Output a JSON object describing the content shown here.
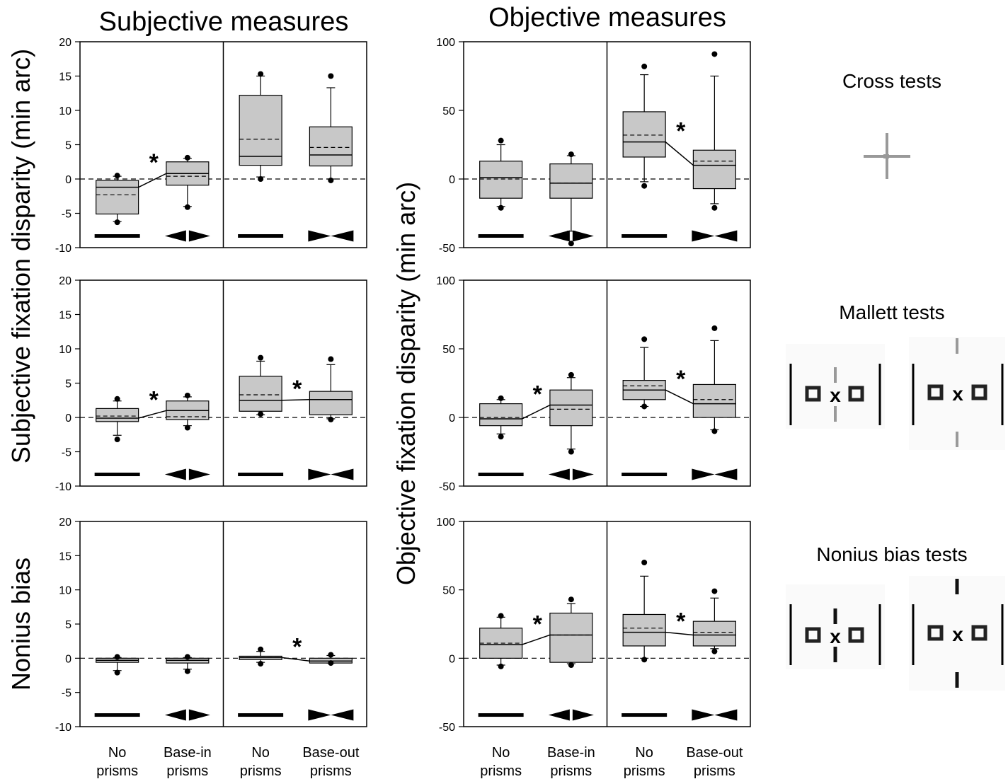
{
  "headers": {
    "subjective": "Subjective measures",
    "objective": "Objective measures"
  },
  "ylabels": {
    "subjective_main": "Subjective fixation disparity (min arc)",
    "nonius": "Nonius bias",
    "objective_main": "Objective fixation disparity (min arc)"
  },
  "categories": [
    [
      "No",
      "prisms"
    ],
    [
      "Base-in",
      "prisms"
    ],
    [
      "No",
      "prisms"
    ],
    [
      "Base-out",
      "prisms"
    ]
  ],
  "prism_symbols": [
    "bar",
    "base-in",
    "bar",
    "base-out"
  ],
  "test_titles": {
    "cross": "Cross tests",
    "mallett": "Mallett tests",
    "nonius": "Nonius bias tests"
  },
  "significance_marker": "*",
  "colors": {
    "box_fill": "#c8c8c8",
    "line": "#000000",
    "symbol_gray": "#999999"
  },
  "chart_data": [
    {
      "type": "box",
      "panel": "subjective-cross",
      "ylim": [
        -10,
        20
      ],
      "yticks": [
        -10,
        -5,
        0,
        5,
        10,
        15,
        20
      ],
      "boxes": [
        {
          "q1": -5.1,
          "median": -1.2,
          "q3": -0.2,
          "mean": -2.3,
          "whisker_low": -6.2,
          "whisker_high": 0.4,
          "outliers": [
            -6.3,
            0.5
          ]
        },
        {
          "q1": -0.9,
          "median": 0.8,
          "q3": 2.5,
          "mean": 0.4,
          "whisker_low": -4.0,
          "whisker_high": 3.0,
          "outliers": [
            -4.1,
            3.1
          ]
        },
        {
          "q1": 2.0,
          "median": 3.3,
          "q3": 12.2,
          "mean": 5.8,
          "whisker_low": 0.3,
          "whisker_high": 15.0,
          "outliers": [
            0.0,
            15.3
          ]
        },
        {
          "q1": 1.9,
          "median": 3.5,
          "q3": 7.6,
          "mean": 4.6,
          "whisker_low": 0.0,
          "whisker_high": 13.3,
          "outliers": [
            -0.2,
            15.0
          ]
        }
      ],
      "significant_pairs": [
        [
          0,
          1
        ]
      ]
    },
    {
      "type": "box",
      "panel": "subjective-mallett",
      "ylim": [
        -10,
        20
      ],
      "yticks": [
        -10,
        -5,
        0,
        5,
        10,
        15,
        20
      ],
      "boxes": [
        {
          "q1": -0.6,
          "median": -0.1,
          "q3": 1.3,
          "mean": 0.2,
          "whisker_low": -2.6,
          "whisker_high": 2.4,
          "outliers": [
            -3.2,
            2.7
          ]
        },
        {
          "q1": -0.3,
          "median": 1.0,
          "q3": 2.4,
          "mean": 0.1,
          "whisker_low": -1.2,
          "whisker_high": 3.0,
          "outliers": [
            -1.5,
            3.2
          ]
        },
        {
          "q1": 0.9,
          "median": 2.5,
          "q3": 6.0,
          "mean": 3.3,
          "whisker_low": 0.4,
          "whisker_high": 8.2,
          "outliers": [
            0.5,
            8.7
          ]
        },
        {
          "q1": 0.4,
          "median": 2.6,
          "q3": 3.8,
          "mean": 2.6,
          "whisker_low": -0.2,
          "whisker_high": 7.7,
          "outliers": [
            -0.3,
            8.5
          ]
        }
      ],
      "significant_pairs": [
        [
          0,
          1
        ],
        [
          2,
          3
        ]
      ]
    },
    {
      "type": "box",
      "panel": "subjective-nonius",
      "ylim": [
        -10,
        20
      ],
      "yticks": [
        -10,
        -5,
        0,
        5,
        10,
        15,
        20
      ],
      "boxes": [
        {
          "q1": -0.6,
          "median": -0.3,
          "q3": 0.0,
          "mean": -0.3,
          "whisker_low": -1.8,
          "whisker_high": 0.1,
          "outliers": [
            -2.1,
            0.2
          ]
        },
        {
          "q1": -0.7,
          "median": -0.3,
          "q3": 0.0,
          "mean": -0.3,
          "whisker_low": -1.6,
          "whisker_high": 0.1,
          "outliers": [
            -1.9,
            0.2
          ]
        },
        {
          "q1": -0.2,
          "median": 0.1,
          "q3": 0.3,
          "mean": 0.1,
          "whisker_low": -0.6,
          "whisker_high": 1.0,
          "outliers": [
            -0.8,
            1.3
          ]
        },
        {
          "q1": -0.7,
          "median": -0.4,
          "q3": 0.0,
          "mean": -0.4,
          "whisker_low": -0.7,
          "whisker_high": 0.4,
          "outliers": [
            -0.7,
            0.5
          ]
        }
      ],
      "significant_pairs": [
        [
          2,
          3
        ]
      ]
    },
    {
      "type": "box",
      "panel": "objective-cross",
      "ylim": [
        -50,
        100
      ],
      "yticks": [
        -50,
        0,
        50,
        100
      ],
      "boxes": [
        {
          "q1": -14,
          "median": 1,
          "q3": 13,
          "mean": 0,
          "whisker_low": -20,
          "whisker_high": 25,
          "outliers": [
            -21,
            28
          ]
        },
        {
          "q1": -14,
          "median": -3,
          "q3": 11,
          "mean": -3,
          "whisker_low": -38,
          "whisker_high": 17,
          "outliers": [
            -47,
            18
          ]
        },
        {
          "q1": 16,
          "median": 27,
          "q3": 49,
          "mean": 32,
          "whisker_low": -2,
          "whisker_high": 76,
          "outliers": [
            -5,
            82
          ]
        },
        {
          "q1": -7,
          "median": 10,
          "q3": 21,
          "mean": 13,
          "whisker_low": -18,
          "whisker_high": 75,
          "outliers": [
            -21,
            91
          ]
        }
      ],
      "significant_pairs": [
        [
          2,
          3
        ]
      ]
    },
    {
      "type": "box",
      "panel": "objective-mallett",
      "ylim": [
        -50,
        100
      ],
      "yticks": [
        -50,
        0,
        50,
        100
      ],
      "boxes": [
        {
          "q1": -6,
          "median": -1,
          "q3": 10,
          "mean": 0,
          "whisker_low": -12,
          "whisker_high": 13,
          "outliers": [
            -14,
            14
          ]
        },
        {
          "q1": -6,
          "median": 9,
          "q3": 20,
          "mean": 6,
          "whisker_low": -23,
          "whisker_high": 29,
          "outliers": [
            -25,
            31
          ]
        },
        {
          "q1": 13,
          "median": 20,
          "q3": 27,
          "mean": 23,
          "whisker_low": 8,
          "whisker_high": 51,
          "outliers": [
            8,
            57
          ]
        },
        {
          "q1": 0,
          "median": 10,
          "q3": 24,
          "mean": 13,
          "whisker_low": -9,
          "whisker_high": 56,
          "outliers": [
            -10,
            65
          ]
        }
      ],
      "significant_pairs": [
        [
          0,
          1
        ],
        [
          2,
          3
        ]
      ]
    },
    {
      "type": "box",
      "panel": "objective-nonius",
      "ylim": [
        -50,
        100
      ],
      "yticks": [
        -50,
        0,
        50,
        100
      ],
      "boxes": [
        {
          "q1": 0,
          "median": 10,
          "q3": 22,
          "mean": 11,
          "whisker_low": -5,
          "whisker_high": 30,
          "outliers": [
            -6,
            31
          ]
        },
        {
          "q1": -3,
          "median": 17,
          "q3": 33,
          "mean": 17,
          "whisker_low": -4,
          "whisker_high": 40,
          "outliers": [
            -5,
            43
          ]
        },
        {
          "q1": 9,
          "median": 19,
          "q3": 32,
          "mean": 22,
          "whisker_low": 0,
          "whisker_high": 60,
          "outliers": [
            -1,
            70
          ]
        },
        {
          "q1": 9,
          "median": 17,
          "q3": 27,
          "mean": 19,
          "whisker_low": 7,
          "whisker_high": 44,
          "outliers": [
            5,
            49
          ]
        }
      ],
      "significant_pairs": [
        [
          0,
          1
        ],
        [
          2,
          3
        ]
      ]
    }
  ]
}
